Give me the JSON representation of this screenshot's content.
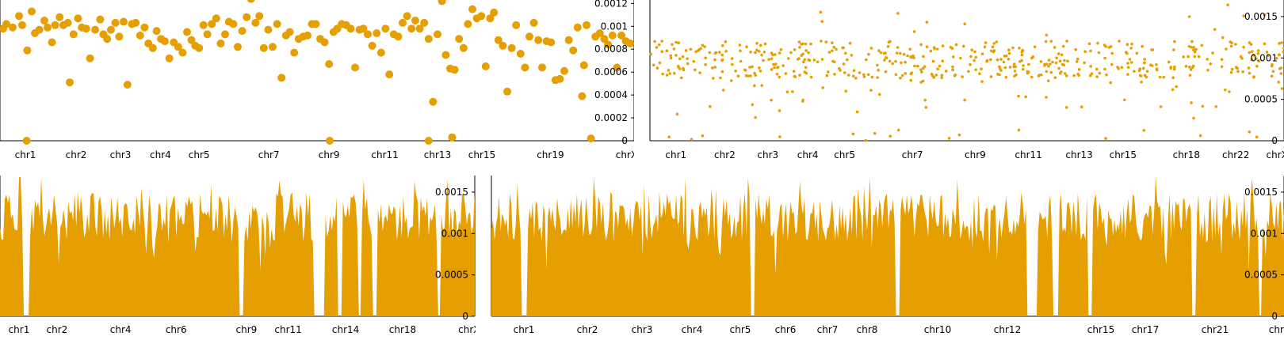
{
  "colors": {
    "series": "#E69F00",
    "axis": "#000000",
    "background": "#ffffff"
  },
  "chart_data": [
    {
      "id": "top-left",
      "type": "scatter",
      "title": "",
      "xlabel": "",
      "ylabel": "",
      "ylim": [
        0,
        0.00123
      ],
      "y_ticks": [
        {
          "value": 0,
          "label": "0"
        },
        {
          "value": 0.0002,
          "label": "0.0002"
        },
        {
          "value": 0.0004,
          "label": "0.0004"
        },
        {
          "value": 0.0006,
          "label": "0.0006"
        },
        {
          "value": 0.0008,
          "label": "0.0008"
        },
        {
          "value": 0.001,
          "label": "0.001"
        },
        {
          "value": 0.0012,
          "label": "0.0012"
        }
      ],
      "y_axis_side": "right",
      "x_range": [
        0,
        100
      ],
      "x_ticks": [
        {
          "pos": 4,
          "label": "chr1"
        },
        {
          "pos": 12,
          "label": "chr2"
        },
        {
          "pos": 19,
          "label": "chr3"
        },
        {
          "pos": 25.3,
          "label": "chr4"
        },
        {
          "pos": 31.4,
          "label": "chr5"
        },
        {
          "pos": 42.4,
          "label": "chr7"
        },
        {
          "pos": 51.9,
          "label": "chr9"
        },
        {
          "pos": 60.7,
          "label": "chr11"
        },
        {
          "pos": 69,
          "label": "chr13"
        },
        {
          "pos": 76,
          "label": "chr15"
        },
        {
          "pos": 86.8,
          "label": "chr19"
        },
        {
          "pos": 98.8,
          "label": "chrX"
        }
      ],
      "grid": false,
      "marker_size": "large",
      "points": {
        "x": [
          0.5,
          1,
          2,
          3,
          3.5,
          4.3,
          5,
          5.5,
          6.2,
          7,
          7.5,
          8.2,
          8.7,
          9.4,
          10,
          10.7,
          11,
          11.6,
          12.3,
          12.9,
          13.6,
          14.2,
          15,
          15.8,
          16.3,
          16.9,
          17.5,
          18.2,
          18.8,
          19.5,
          20.1,
          20.8,
          21.4,
          22.1,
          22.8,
          23.4,
          24.1,
          24.7,
          25.4,
          26,
          26.7,
          27.4,
          28.1,
          28.8,
          29.5,
          30.2,
          30.8,
          31.4,
          32.1,
          32.7,
          33.4,
          34.1,
          34.8,
          35.5,
          36.1,
          36.8,
          37.5,
          38.2,
          38.9,
          39.6,
          40.3,
          40.9,
          41.6,
          42.3,
          43,
          43.7,
          44.4,
          45.1,
          45.7,
          46.4,
          47.1,
          47.8,
          48.5,
          49.2,
          49.8,
          50.5,
          51.2,
          51.9,
          52.6,
          53.2,
          53.9,
          54.6,
          55.3,
          56,
          56.7,
          57.3,
          58,
          58.7,
          59.4,
          60.1,
          60.8,
          61.4,
          62.1,
          62.8,
          63.5,
          64.2,
          64.9,
          65.5,
          66.2,
          66.9,
          67.6,
          68.3,
          69,
          69.7,
          70.3,
          71,
          71.7,
          72.4,
          73.1,
          73.8,
          74.5,
          75.2,
          75.9,
          76.6,
          77.3,
          77.9,
          78.6,
          79.3,
          80,
          80.7,
          81.4,
          82.1,
          82.8,
          83.5,
          84.2,
          84.9,
          85.5,
          86.2,
          86.9,
          87.6,
          88.3,
          89,
          89.7,
          90.4,
          91.1,
          91.8,
          92.5,
          93.2,
          93.9,
          94.6,
          95.3,
          95.9,
          96.6,
          97.3,
          98,
          98.7,
          99.4,
          4.2,
          52,
          67.6,
          71.3,
          92.1
        ],
        "y": [
          0.00098,
          0.00102,
          0.00099,
          0.00109,
          0.00101,
          0.00079,
          0.00113,
          0.00094,
          0.00097,
          0.00105,
          0.00099,
          0.00086,
          0.00101,
          0.00108,
          0.00101,
          0.00103,
          0.00051,
          0.00093,
          0.00107,
          0.00099,
          0.00098,
          0.00072,
          0.00097,
          0.00106,
          0.00093,
          0.00089,
          0.00097,
          0.00103,
          0.00091,
          0.00104,
          0.00049,
          0.00102,
          0.00103,
          0.00092,
          0.00099,
          0.00085,
          0.00081,
          0.00096,
          0.00089,
          0.00087,
          0.00072,
          0.00086,
          0.00082,
          0.00077,
          0.00095,
          0.00088,
          0.00083,
          0.00081,
          0.00101,
          0.00093,
          0.00102,
          0.00107,
          0.00085,
          0.00093,
          0.00104,
          0.00102,
          0.00082,
          0.00096,
          0.00108,
          0.00124,
          0.00103,
          0.00109,
          0.00081,
          0.00097,
          0.00082,
          0.00102,
          0.00055,
          0.00092,
          0.00095,
          0.00077,
          0.00089,
          0.00091,
          0.00092,
          0.00102,
          0.00102,
          0.00089,
          0.00086,
          0.00067,
          0.00095,
          0.00098,
          0.00102,
          0.00101,
          0.00098,
          0.00064,
          0.00097,
          0.00098,
          0.00093,
          0.00083,
          0.00094,
          0.00077,
          0.00098,
          0.00058,
          0.00093,
          0.00091,
          0.00103,
          0.00109,
          0.00098,
          0.00105,
          0.00098,
          0.00103,
          0.00089,
          0.00034,
          0.00093,
          0.00122,
          0.00075,
          0.00063,
          0.00062,
          0.00089,
          0.00081,
          0.00102,
          0.00115,
          0.00107,
          0.00109,
          0.00065,
          0.00107,
          0.00112,
          0.00088,
          0.00083,
          0.00043,
          0.00081,
          0.00101,
          0.00076,
          0.00064,
          0.00091,
          0.00103,
          0.00088,
          0.00064,
          0.00087,
          0.00086,
          0.00053,
          0.00054,
          0.00061,
          0.00088,
          0.00079,
          0.00099,
          0.00039,
          0.00101,
          2e-05,
          0.00091,
          0.00094,
          0.00089,
          0.00084,
          0.00092,
          0.00064,
          0.00092,
          0.00087,
          0.00085,
          0.0,
          0.0,
          0.0,
          3e-05,
          0.00066
        ]
      }
    },
    {
      "id": "top-right",
      "type": "scatter",
      "title": "",
      "xlabel": "",
      "ylabel": "",
      "ylim": [
        0,
        0.0017
      ],
      "y_ticks": [
        {
          "value": 0,
          "label": "0"
        },
        {
          "value": 0.0005,
          "label": "0.0005"
        },
        {
          "value": 0.001,
          "label": "0.001"
        },
        {
          "value": 0.0015,
          "label": "0.0015"
        }
      ],
      "y_axis_side": "right",
      "x_range": [
        0,
        100
      ],
      "x_ticks": [
        {
          "pos": 4.1,
          "label": "chr1"
        },
        {
          "pos": 11.8,
          "label": "chr2"
        },
        {
          "pos": 18.6,
          "label": "chr3"
        },
        {
          "pos": 24.9,
          "label": "chr4"
        },
        {
          "pos": 30.7,
          "label": "chr5"
        },
        {
          "pos": 41.4,
          "label": "chr7"
        },
        {
          "pos": 51.3,
          "label": "chr9"
        },
        {
          "pos": 59.7,
          "label": "chr11"
        },
        {
          "pos": 67.7,
          "label": "chr13"
        },
        {
          "pos": 74.6,
          "label": "chr15"
        },
        {
          "pos": 84.6,
          "label": "chr18"
        },
        {
          "pos": 92.4,
          "label": "chr22"
        },
        {
          "pos": 98.9,
          "label": "chrX"
        }
      ],
      "grid": false,
      "marker_size": "small",
      "points": {
        "x": [],
        "y": []
      },
      "points_note_free": true
    },
    {
      "id": "bottom-left",
      "type": "area",
      "title": "",
      "xlabel": "",
      "ylabel": "",
      "ylim": [
        0,
        0.0017
      ],
      "y_ticks": [
        {
          "value": 0,
          "label": "0"
        },
        {
          "value": 0.0005,
          "label": "0.0005"
        },
        {
          "value": 0.001,
          "label": "0.001"
        },
        {
          "value": 0.0015,
          "label": "0.0015"
        }
      ],
      "y_axis_side": "right",
      "x_range": [
        0,
        100
      ],
      "x_ticks": [
        {
          "pos": 4,
          "label": "chr1"
        },
        {
          "pos": 12,
          "label": "chr2"
        },
        {
          "pos": 25.4,
          "label": "chr4"
        },
        {
          "pos": 37.1,
          "label": "chr6"
        },
        {
          "pos": 51.9,
          "label": "chr9"
        },
        {
          "pos": 60.7,
          "label": "chr11"
        },
        {
          "pos": 72.8,
          "label": "chr14"
        },
        {
          "pos": 84.8,
          "label": "chr18"
        },
        {
          "pos": 98.8,
          "label": "chrX"
        }
      ],
      "grid": false,
      "gaps": [
        [
          4.9,
          6.1
        ],
        [
          50.5,
          51.5
        ],
        [
          66.1,
          68.3
        ],
        [
          71.1,
          72.2
        ],
        [
          75.3,
          76.1
        ],
        [
          78.5,
          79.5
        ],
        [
          92.2,
          92.9
        ]
      ],
      "values": []
    },
    {
      "id": "bottom-right",
      "type": "area",
      "title": "",
      "xlabel": "",
      "ylabel": "",
      "ylim": [
        0,
        0.0017
      ],
      "y_ticks": [
        {
          "value": 0,
          "label": "0"
        },
        {
          "value": 0.0005,
          "label": "0.0005"
        },
        {
          "value": 0.001,
          "label": "0.001"
        },
        {
          "value": 0.0015,
          "label": "0.0015"
        }
      ],
      "y_axis_side": "right",
      "x_range": [
        0,
        100
      ],
      "x_ticks": [
        {
          "pos": 4.1,
          "label": "chr1"
        },
        {
          "pos": 12.1,
          "label": "chr2"
        },
        {
          "pos": 19,
          "label": "chr3"
        },
        {
          "pos": 25.3,
          "label": "chr4"
        },
        {
          "pos": 31.4,
          "label": "chr5"
        },
        {
          "pos": 37.1,
          "label": "chr6"
        },
        {
          "pos": 42.4,
          "label": "chr7"
        },
        {
          "pos": 47.4,
          "label": "chr8"
        },
        {
          "pos": 56.3,
          "label": "chr10"
        },
        {
          "pos": 65.1,
          "label": "chr12"
        },
        {
          "pos": 76.9,
          "label": "chr15"
        },
        {
          "pos": 82.5,
          "label": "chr17"
        },
        {
          "pos": 91.3,
          "label": "chr21"
        },
        {
          "pos": 99.4,
          "label": "chrY"
        }
      ],
      "grid": false,
      "gaps": [
        [
          3.7,
          4.5
        ],
        [
          32.6,
          33.2
        ],
        [
          50.9,
          51.6
        ],
        [
          67.6,
          68.8
        ],
        [
          70.8,
          71.5
        ],
        [
          75.3,
          75.8
        ],
        [
          88.4,
          88.9
        ],
        [
          96.8,
          97.3
        ]
      ],
      "values": []
    }
  ]
}
